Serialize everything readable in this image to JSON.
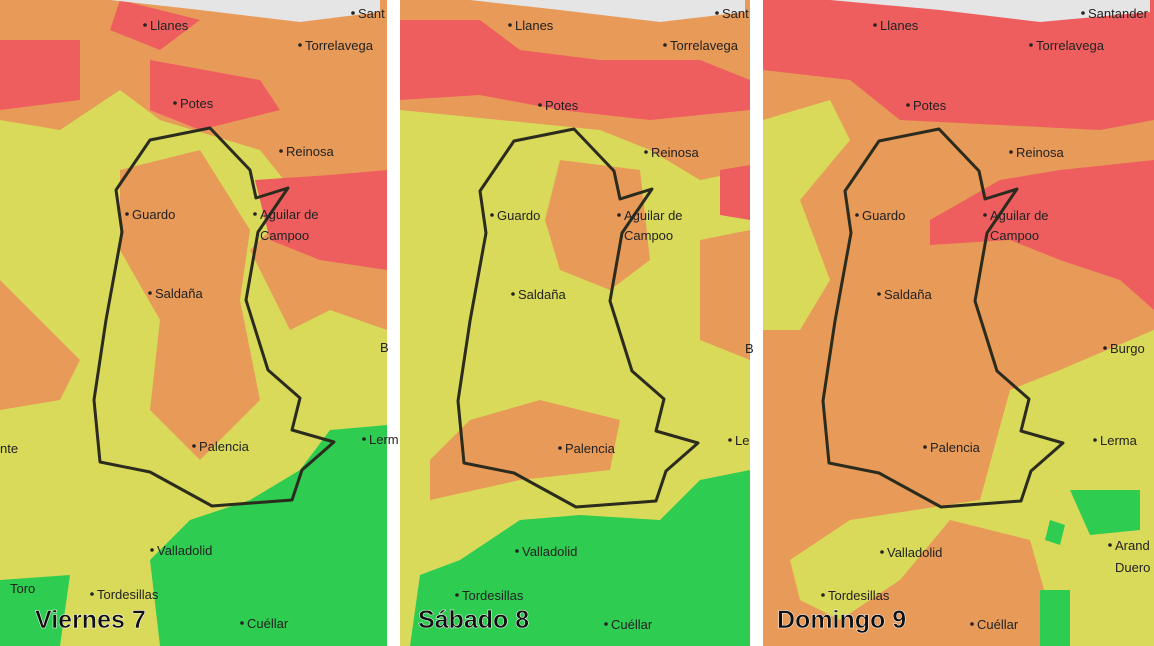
{
  "panels": [
    {
      "day": "Viernes 7",
      "places": [
        "Sant",
        "Llanes",
        "Torrelavega",
        "Potes",
        "Reinosa",
        "Guardo",
        "Aguilar de",
        "Campoo",
        "Saldaña",
        "Palencia",
        "Valladolid",
        "Tordesillas",
        "Cuéllar",
        "Toro",
        "nte",
        "Lerm",
        "B"
      ]
    },
    {
      "day": "Sábado 8",
      "places": [
        "Sant",
        "Llanes",
        "Torrelavega",
        "Potes",
        "Reinosa",
        "Guardo",
        "Aguilar de",
        "Campoo",
        "Saldaña",
        "Palencia",
        "Valladolid",
        "Tordesillas",
        "Cuéllar",
        "Le",
        "B"
      ]
    },
    {
      "day": "Domingo 9",
      "places": [
        "Santander",
        "Llanes",
        "Torrelavega",
        "Potes",
        "Reinosa",
        "Guardo",
        "Aguilar de",
        "Campoo",
        "Saldaña",
        "Burgo",
        "Palencia",
        "Lerma",
        "Valladolid",
        "Tordesillas",
        "Cuéllar",
        "Arand",
        "Duero"
      ]
    }
  ]
}
